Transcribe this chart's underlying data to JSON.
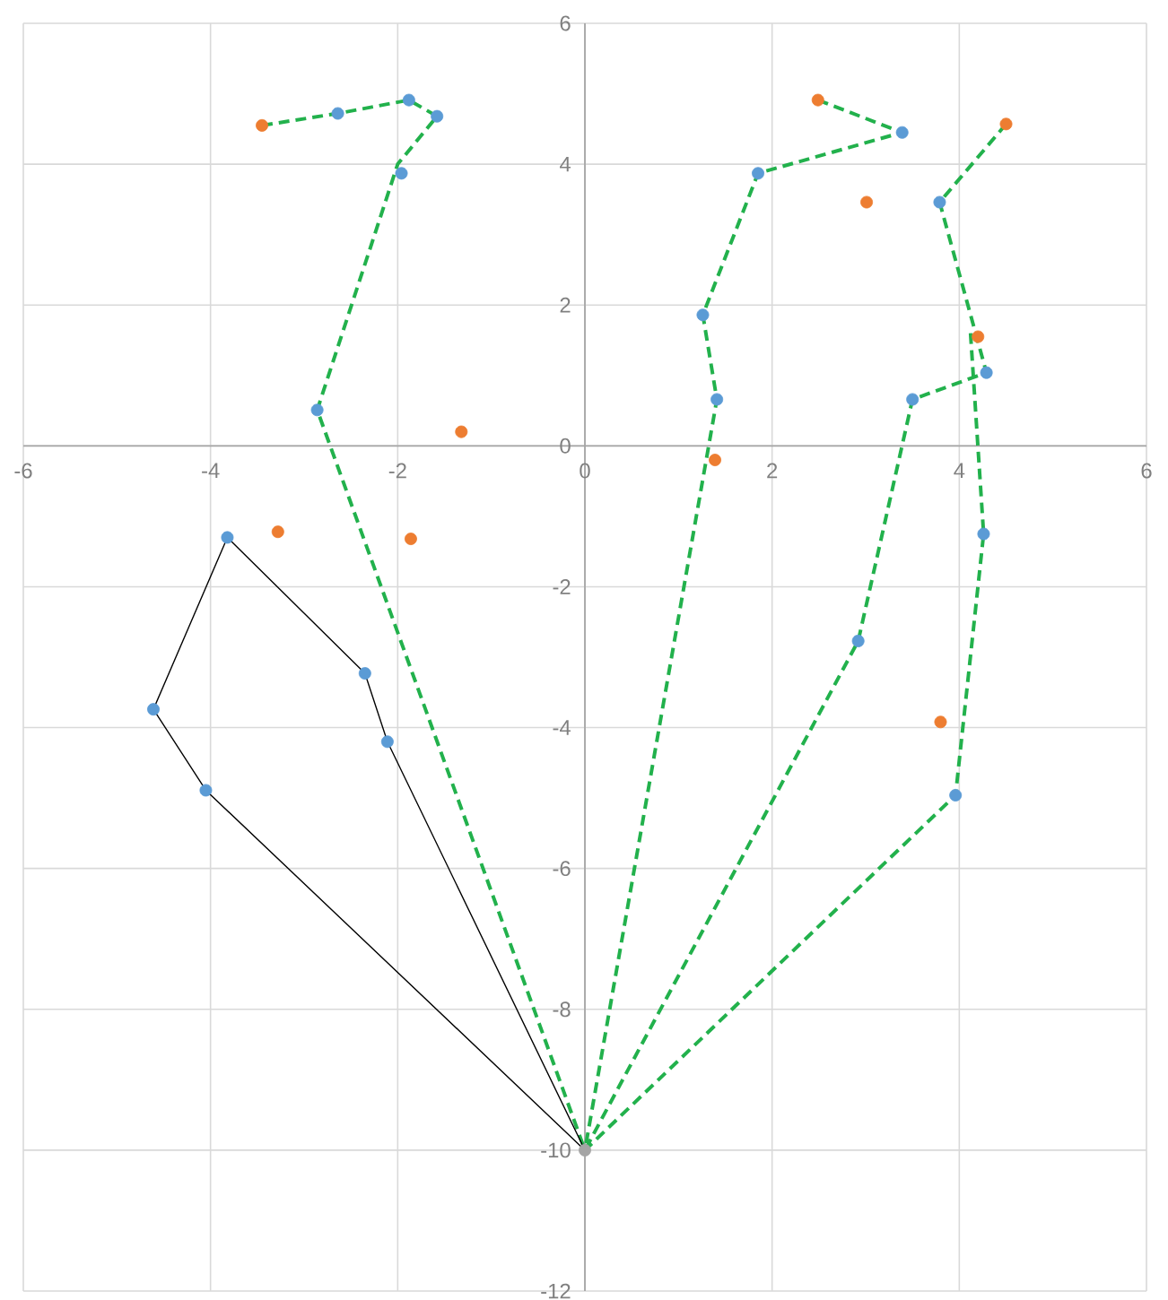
{
  "chart_data": {
    "type": "scatter",
    "xlim": [
      -6,
      6
    ],
    "ylim": [
      -12,
      6
    ],
    "xticks": [
      -6,
      -4,
      -2,
      0,
      2,
      4,
      6
    ],
    "yticks": [
      -12,
      -10,
      -8,
      -6,
      -4,
      -2,
      0,
      2,
      4,
      6
    ],
    "grid": true,
    "series": [
      {
        "type": "line",
        "color": "#22b14c",
        "marker": "none",
        "line_style": "dashed",
        "x": [
          -3.45,
          -2.64,
          -1.88,
          -1.58,
          -2.0,
          -2.86,
          0
        ],
        "values": [
          4.55,
          4.72,
          4.91,
          4.68,
          4.0,
          0.51,
          -10
        ]
      },
      {
        "type": "line",
        "color": "#22b14c",
        "marker": "none",
        "line_style": "dashed",
        "x": [
          2.49,
          3.39,
          1.85,
          1.26,
          1.41,
          0
        ],
        "values": [
          4.91,
          4.45,
          3.87,
          1.86,
          0.66,
          -10
        ]
      },
      {
        "type": "line",
        "color": "#22b14c",
        "marker": "none",
        "line_style": "dashed",
        "x": [
          4.5,
          3.79,
          4.29,
          3.5,
          2.92,
          0
        ],
        "values": [
          4.57,
          3.46,
          1.04,
          0.66,
          -2.77,
          -10
        ]
      },
      {
        "type": "line",
        "color": "#22b14c",
        "marker": "none",
        "line_style": "dashed",
        "x": [
          4.12,
          4.26,
          3.96,
          0
        ],
        "values": [
          1.6,
          -1.25,
          -4.96,
          -10
        ]
      },
      {
        "type": "line",
        "color": "#000000",
        "marker": "none",
        "line_style": "solid",
        "x": [
          -3.82,
          -2.35,
          -2.11,
          0
        ],
        "values": [
          -1.3,
          -3.23,
          -4.2,
          -10
        ]
      },
      {
        "type": "line",
        "color": "#000000",
        "marker": "none",
        "line_style": "solid",
        "x": [
          -3.82,
          -4.61,
          -4.05,
          0
        ],
        "values": [
          -1.3,
          -3.74,
          -4.89,
          -10
        ]
      },
      {
        "color": "#5b9bd5",
        "marker": "circle",
        "x": [
          -2.64,
          -1.88,
          -1.58,
          -1.96,
          -2.86,
          -3.82,
          -4.61,
          -4.05,
          -2.35,
          -2.11,
          3.39,
          1.85,
          1.26,
          1.41,
          3.79,
          4.29,
          3.5,
          4.26,
          2.92,
          3.96
        ],
        "values": [
          4.72,
          4.91,
          4.68,
          3.87,
          0.51,
          -1.3,
          -3.74,
          -4.89,
          -3.23,
          -4.2,
          4.45,
          3.87,
          1.86,
          0.66,
          3.46,
          1.04,
          0.66,
          -1.25,
          -2.77,
          -4.96
        ]
      },
      {
        "color": "#ed7d31",
        "marker": "circle",
        "x": [
          -3.45,
          -1.32,
          -3.28,
          -1.86,
          2.49,
          4.5,
          3.01,
          4.2,
          1.39,
          3.8
        ],
        "values": [
          4.55,
          0.2,
          -1.22,
          -1.32,
          4.91,
          4.57,
          3.46,
          1.55,
          -0.2,
          -3.92
        ]
      },
      {
        "color": "#a5a5a5",
        "marker": "circle",
        "x": [
          0
        ],
        "values": [
          -10
        ]
      }
    ]
  }
}
